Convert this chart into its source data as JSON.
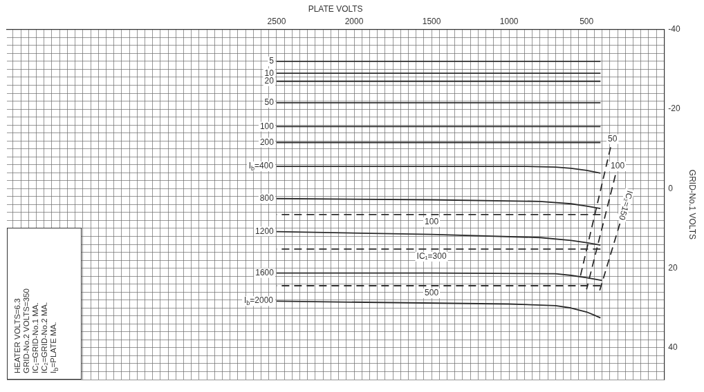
{
  "chart_data": {
    "type": "line",
    "xlabel": "PLATE VOLTS",
    "ylabel": "GRID-No.1 VOLTS",
    "xlim": [
      4240,
      0
    ],
    "ylim": [
      48,
      -40
    ],
    "grid": true,
    "xticks": [
      {
        "value": 0,
        "label": null
      },
      {
        "value": 50,
        "label": null
      },
      {
        "value": 100,
        "label": null
      },
      {
        "value": 150,
        "label": null
      },
      {
        "value": 200,
        "label": null
      },
      {
        "value": 250,
        "label": null
      },
      {
        "value": 300,
        "label": null
      },
      {
        "value": 350,
        "label": null
      },
      {
        "value": 400,
        "label": null
      },
      {
        "value": 450,
        "label": null
      },
      500,
      {
        "value": 550,
        "label": null
      },
      {
        "value": 600,
        "label": null
      },
      {
        "value": 650,
        "label": null
      },
      {
        "value": 700,
        "label": null
      },
      {
        "value": 750,
        "label": null
      },
      {
        "value": 800,
        "label": null
      },
      {
        "value": 850,
        "label": null
      },
      {
        "value": 900,
        "label": null
      },
      {
        "value": 950,
        "label": null
      },
      1000,
      {
        "value": 1050,
        "label": null
      },
      {
        "value": 1100,
        "label": null
      },
      {
        "value": 1150,
        "label": null
      },
      {
        "value": 1200,
        "label": null
      },
      {
        "value": 1250,
        "label": null
      },
      {
        "value": 1300,
        "label": null
      },
      {
        "value": 1350,
        "label": null
      },
      {
        "value": 1400,
        "label": null
      },
      {
        "value": 1450,
        "label": null
      },
      1500,
      {
        "value": 1550,
        "label": null
      },
      {
        "value": 1600,
        "label": null
      },
      {
        "value": 1650,
        "label": null
      },
      {
        "value": 1700,
        "label": null
      },
      {
        "value": 1750,
        "label": null
      },
      {
        "value": 1800,
        "label": null
      },
      {
        "value": 1850,
        "label": null
      },
      {
        "value": 1900,
        "label": null
      },
      {
        "value": 1950,
        "label": null
      },
      2000,
      {
        "value": 2050,
        "label": null
      },
      {
        "value": 2100,
        "label": null
      },
      {
        "value": 2150,
        "label": null
      },
      {
        "value": 2200,
        "label": null
      },
      {
        "value": 2250,
        "label": null
      },
      {
        "value": 2300,
        "label": null
      },
      {
        "value": 2350,
        "label": null
      },
      {
        "value": 2400,
        "label": null
      },
      {
        "value": 2450,
        "label": null
      },
      2500,
      {
        "value": 2550,
        "label": null
      },
      {
        "value": 2600,
        "label": null
      },
      {
        "value": 2650,
        "label": null
      },
      {
        "value": 2700,
        "label": null
      },
      {
        "value": 2750,
        "label": null
      },
      {
        "value": 2800,
        "label": null
      },
      {
        "value": 2850,
        "label": null
      },
      {
        "value": 2900,
        "label": null
      },
      {
        "value": 2950,
        "label": null
      },
      {
        "value": 3000,
        "label": null
      },
      {
        "value": 3050,
        "label": null
      },
      {
        "value": 3100,
        "label": null
      },
      {
        "value": 3150,
        "label": null
      },
      {
        "value": 3200,
        "label": null
      },
      {
        "value": 3250,
        "label": null
      },
      {
        "value": 3300,
        "label": null
      },
      {
        "value": 3350,
        "label": null
      },
      {
        "value": 3400,
        "label": null
      },
      {
        "value": 3450,
        "label": null
      },
      {
        "value": 3500,
        "label": null
      },
      {
        "value": 3550,
        "label": null
      },
      {
        "value": 3600,
        "label": null
      },
      {
        "value": 3650,
        "label": null
      },
      {
        "value": 3700,
        "label": null
      },
      {
        "value": 3750,
        "label": null
      },
      {
        "value": 3800,
        "label": null
      },
      {
        "value": 3850,
        "label": null
      },
      {
        "value": 3900,
        "label": null
      },
      {
        "value": 3950,
        "label": null
      },
      {
        "value": 4000,
        "label": null
      },
      {
        "value": 4050,
        "label": null
      },
      {
        "value": 4100,
        "label": null
      },
      {
        "value": 4150,
        "label": null
      },
      {
        "value": 4200,
        "label": null
      }
    ],
    "yticks": [
      -40,
      {
        "value": -38,
        "label": null
      },
      {
        "value": -36,
        "label": null
      },
      {
        "value": -34,
        "label": null
      },
      {
        "value": -32,
        "label": null
      },
      {
        "value": -30,
        "label": null
      },
      {
        "value": -28,
        "label": null
      },
      {
        "value": -26,
        "label": null
      },
      {
        "value": -24,
        "label": null
      },
      {
        "value": -22,
        "label": null
      },
      -20,
      {
        "value": -18,
        "label": null
      },
      {
        "value": -16,
        "label": null
      },
      {
        "value": -14,
        "label": null
      },
      {
        "value": -12,
        "label": null
      },
      {
        "value": -10,
        "label": null
      },
      {
        "value": -8,
        "label": null
      },
      {
        "value": -6,
        "label": null
      },
      {
        "value": -4,
        "label": null
      },
      {
        "value": -2,
        "label": null
      },
      0,
      {
        "value": 2,
        "label": null
      },
      {
        "value": 4,
        "label": null
      },
      {
        "value": 6,
        "label": null
      },
      {
        "value": 8,
        "label": null
      },
      {
        "value": 10,
        "label": null
      },
      {
        "value": 12,
        "label": null
      },
      {
        "value": 14,
        "label": null
      },
      {
        "value": 16,
        "label": null
      },
      {
        "value": 18,
        "label": null
      },
      20,
      {
        "value": 22,
        "label": null
      },
      {
        "value": 24,
        "label": null
      },
      {
        "value": 26,
        "label": null
      },
      {
        "value": 28,
        "label": null
      },
      {
        "value": 30,
        "label": null
      },
      {
        "value": 32,
        "label": null
      },
      {
        "value": 34,
        "label": null
      },
      {
        "value": 36,
        "label": null
      },
      {
        "value": 38,
        "label": null
      },
      40,
      {
        "value": 42,
        "label": null
      },
      {
        "value": 44,
        "label": null
      },
      {
        "value": 46,
        "label": null
      },
      {
        "value": 48,
        "label": null
      }
    ],
    "series": [
      {
        "color": "#2b2b2b",
        "x": [
          410,
          2500
        ],
        "values": [
          -32,
          -32
        ]
      },
      {
        "color": "#2b2b2b",
        "x": [
          410,
          2500
        ],
        "values": [
          -29,
          -29
        ]
      },
      {
        "color": "#2b2b2b",
        "x": [
          410,
          2500
        ],
        "values": [
          -27,
          -27
        ]
      },
      {
        "color": "#2b2b2b",
        "x": [
          410,
          2500
        ],
        "values": [
          -21.6,
          -21.6
        ]
      },
      {
        "color": "#2b2b2b",
        "x": [
          410,
          2500
        ],
        "values": [
          -15.6,
          -15.6
        ]
      },
      {
        "color": "#2b2b2b",
        "x": [
          410,
          2500
        ],
        "values": [
          -11.6,
          -11.6
        ]
      },
      {
        "color": "#2b2b2b",
        "x": [
          410,
          500,
          600,
          700,
          900,
          2500
        ],
        "values": [
          -3.9,
          -4.6,
          -5.1,
          -5.4,
          -5.6,
          -5.6
        ]
      },
      {
        "color": "#2b2b2b",
        "x": [
          410,
          500,
          600,
          800,
          1500,
          2500
        ],
        "values": [
          5.0,
          4.4,
          3.8,
          3.2,
          2.8,
          2.5
        ]
      },
      {
        "color": "#2b2b2b",
        "x": [
          410,
          500,
          600,
          800,
          1500,
          2500
        ],
        "values": [
          14.2,
          13.6,
          13.0,
          12.3,
          11.5,
          10.8
        ]
      },
      {
        "color": "#2b2b2b",
        "x": [
          400,
          500,
          600,
          700,
          1500,
          2500
        ],
        "values": [
          23.1,
          22.4,
          21.8,
          21.4,
          21.2,
          21.2
        ]
      },
      {
        "color": "#2b2b2b",
        "x": [
          410,
          450,
          500,
          600,
          700,
          1000,
          2500
        ],
        "values": [
          32.5,
          31.8,
          31.0,
          30.0,
          29.4,
          29.0,
          28.3
        ]
      },
      {
        "color": "#2b2b2b",
        "line_style": "dashed",
        "x": [
          410,
          2500
        ],
        "values": [
          6.5,
          6.5
        ]
      },
      {
        "color": "#2b2b2b",
        "line_style": "dashed",
        "x": [
          410,
          2500
        ],
        "values": [
          15.2,
          15.2
        ]
      },
      {
        "color": "#2b2b2b",
        "line_style": "dashed",
        "x": [
          410,
          2500
        ],
        "values": [
          24.4,
          24.4
        ]
      },
      {
        "color": "#2b2b2b",
        "line_style": "dashed",
        "x": [
          345,
          540
        ],
        "values": [
          -10.4,
          22
        ]
      },
      {
        "color": "#2b2b2b",
        "line_style": "dashed",
        "x": [
          314,
          500
        ],
        "values": [
          -3.4,
          25.3
        ]
      },
      {
        "color": "#2b2b2b",
        "line_style": "dashed",
        "x": [
          285,
          420
        ],
        "values": [
          8.8,
          26.2
        ]
      }
    ],
    "annotations": [
      {
        "text": "5",
        "x": 2500,
        "y": -32
      },
      {
        "text": "10",
        "x": 2500,
        "y": -29
      },
      {
        "text": "20",
        "x": 2500,
        "y": -27
      },
      {
        "text": "50",
        "x": 2500,
        "y": -21.6
      },
      {
        "text": "100",
        "x": 2500,
        "y": -15.6
      },
      {
        "text": "200",
        "x": 2500,
        "y": -11.6
      },
      {
        "text": "I$_{b}$=400",
        "x": 2500,
        "y": -5.6
      },
      {
        "text": "800",
        "x": 2500,
        "y": 2.5
      },
      {
        "text": "1200",
        "x": 2500,
        "y": 10.8
      },
      {
        "text": "1600",
        "x": 2500,
        "y": 21.2
      },
      {
        "text": "I$_{b}$=2000",
        "x": 2500,
        "y": 28.3
      },
      {
        "text": "100",
        "x": 1500,
        "y": 6.5
      },
      {
        "text": "IC₁=300",
        "x": 1500,
        "y": 15.2
      },
      {
        "text": "500",
        "x": 1500,
        "y": 24.4
      },
      {
        "text": "50",
        "x": 345,
        "y": -10.4
      },
      {
        "text": "100",
        "x": 314,
        "y": -3.4
      },
      {
        "text": "IC₂=150",
        "x": 285,
        "y": 8.8
      },
      "HEATER VOLTS=6.3",
      "GRID-No.2 VOLTS=350",
      "IC₁=GRID-No.1 MA.",
      "IC₂=GRID-No.2 MA.",
      "I$_{b}$=PLATE MA."
    ]
  }
}
